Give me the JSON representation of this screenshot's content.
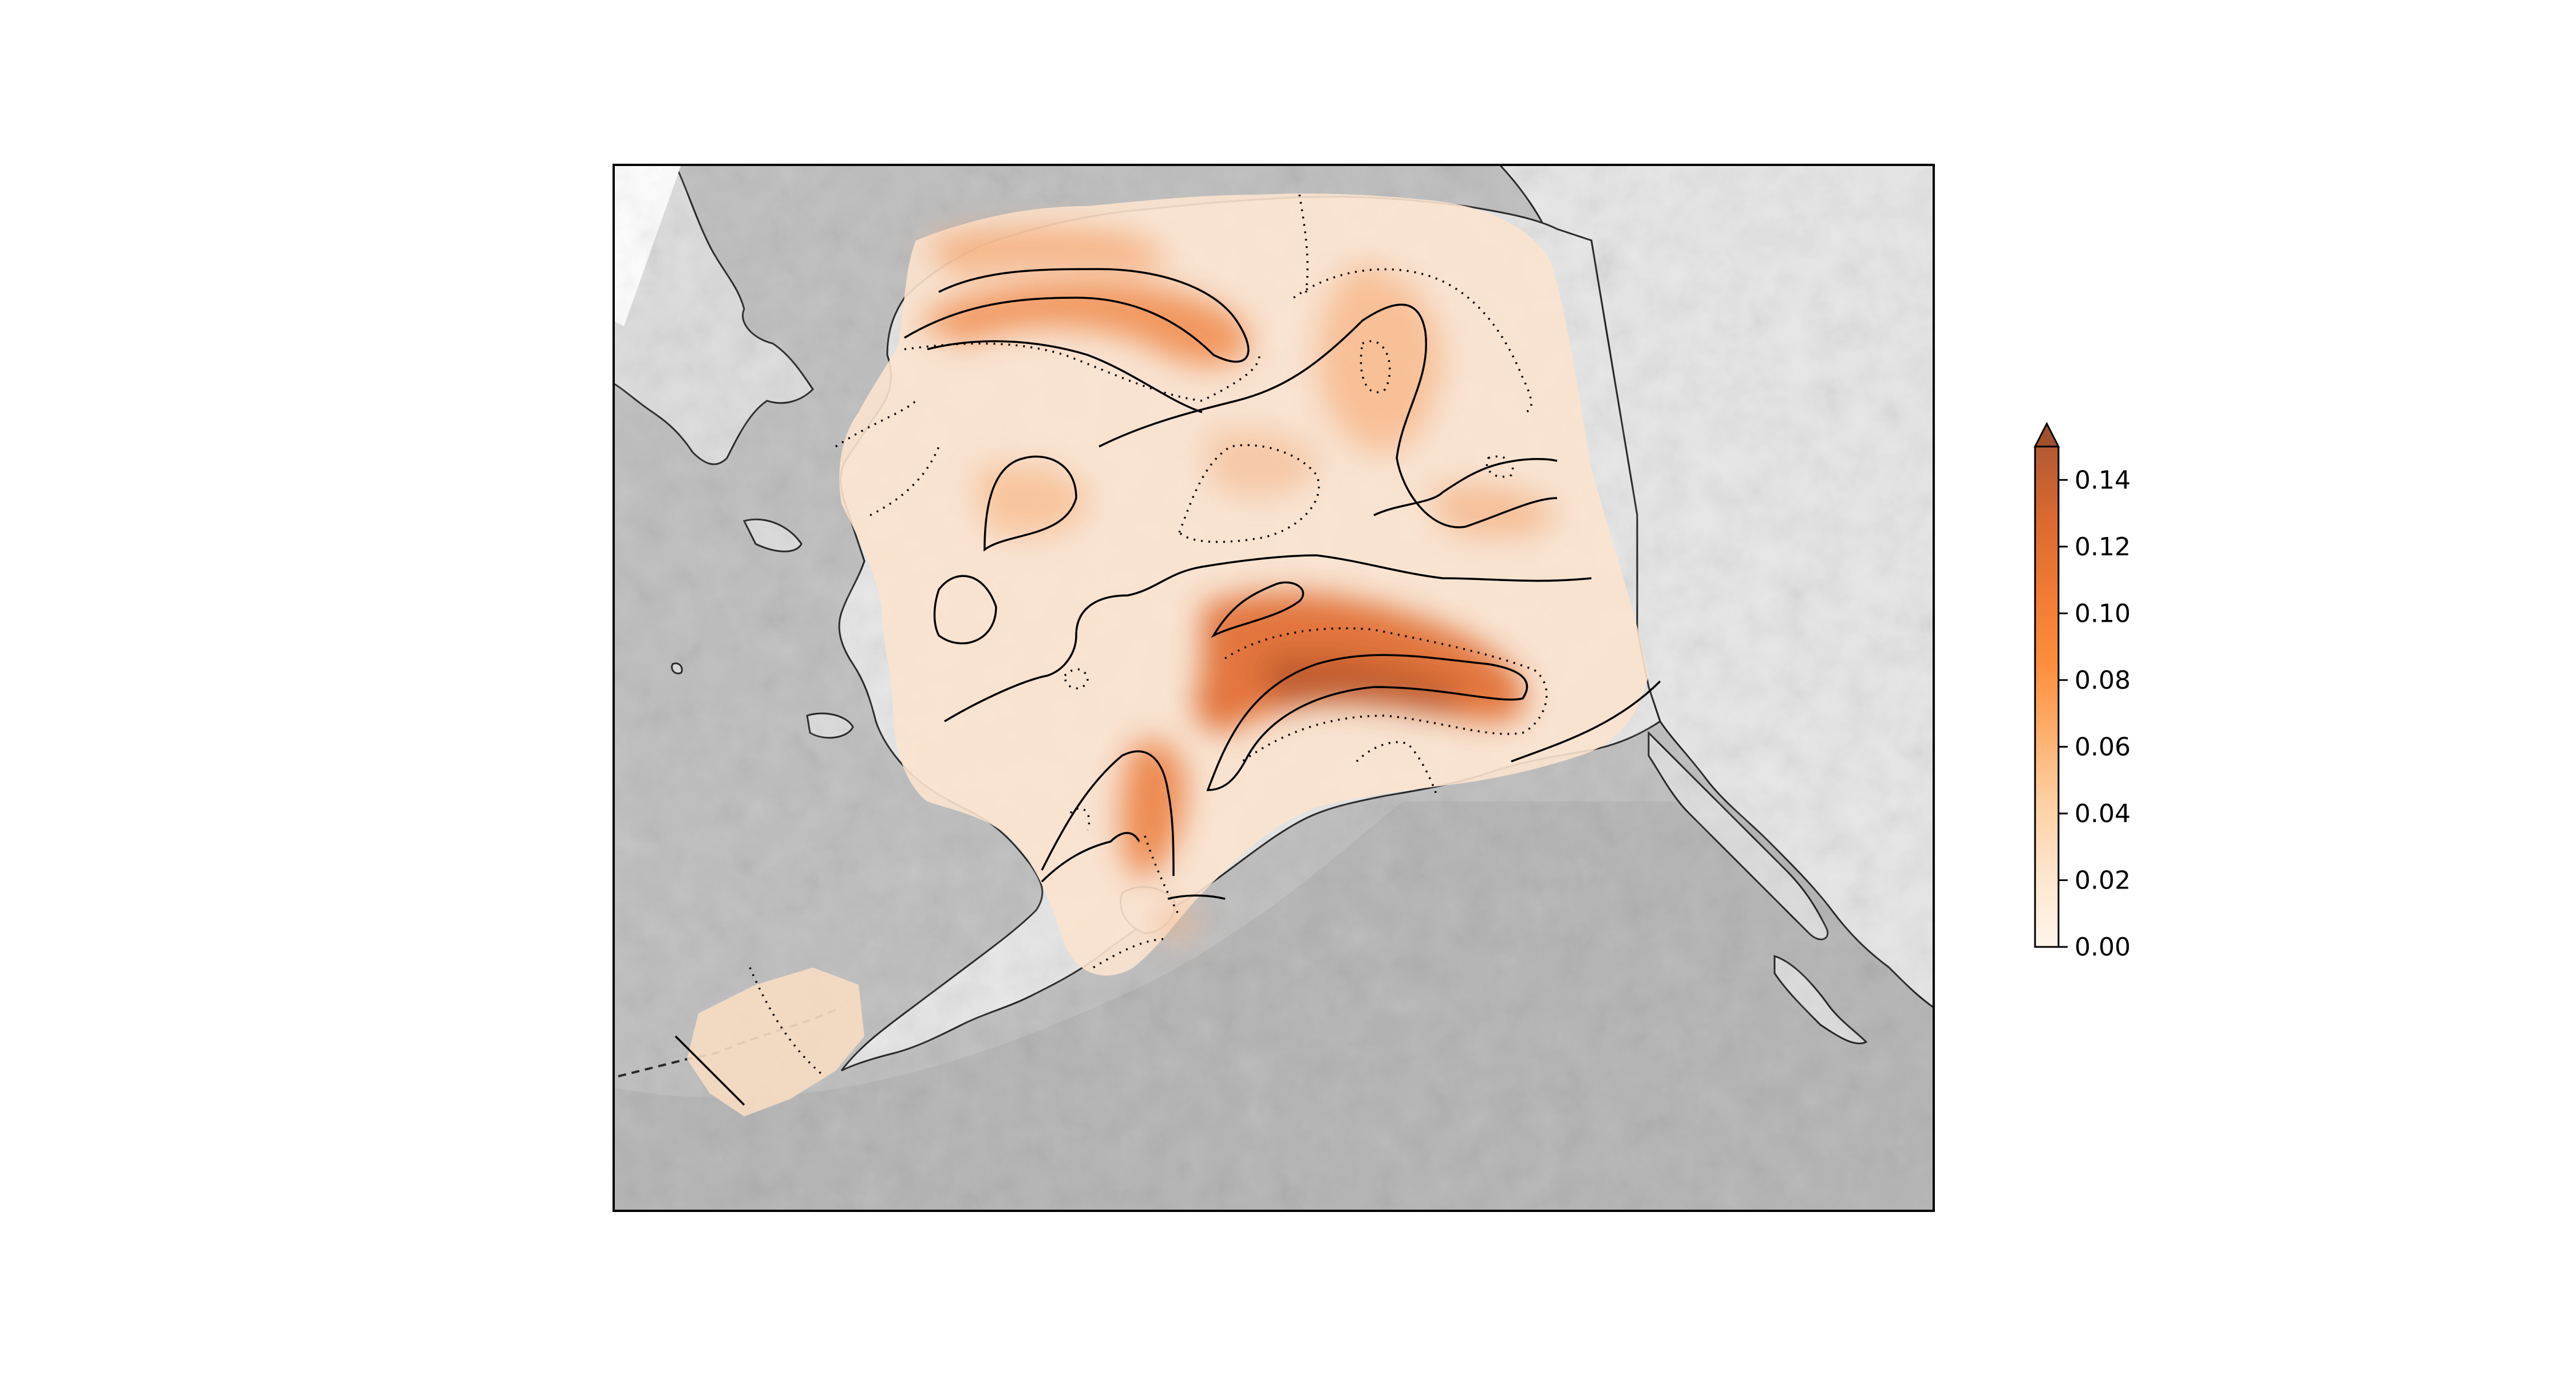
{
  "map": {
    "region": "Alaska",
    "basemap": "shaded relief (grayscale)",
    "contour_styles": [
      "solid",
      "dotted"
    ]
  },
  "colorbar": {
    "colormap": "Oranges (white to brown)",
    "extend": "max",
    "ticks": [
      "0.00",
      "0.02",
      "0.04",
      "0.06",
      "0.08",
      "0.10",
      "0.12",
      "0.14"
    ],
    "tick_values": [
      0,
      0.02,
      0.04,
      0.06,
      0.08,
      0.1,
      0.12,
      0.14
    ],
    "min": 0,
    "max": 0.15,
    "level_step": 0.01,
    "colors": {
      "low": "#fff5eb",
      "mid": "#fd8d3c",
      "high": "#a0522d",
      "extend": "#8c4a2f"
    }
  },
  "colors": {
    "land": "#e6e6e6",
    "ocean": "#bdbdbd",
    "coastline": "#1a1a1a",
    "contour": "#000000",
    "frame": "#000000"
  }
}
